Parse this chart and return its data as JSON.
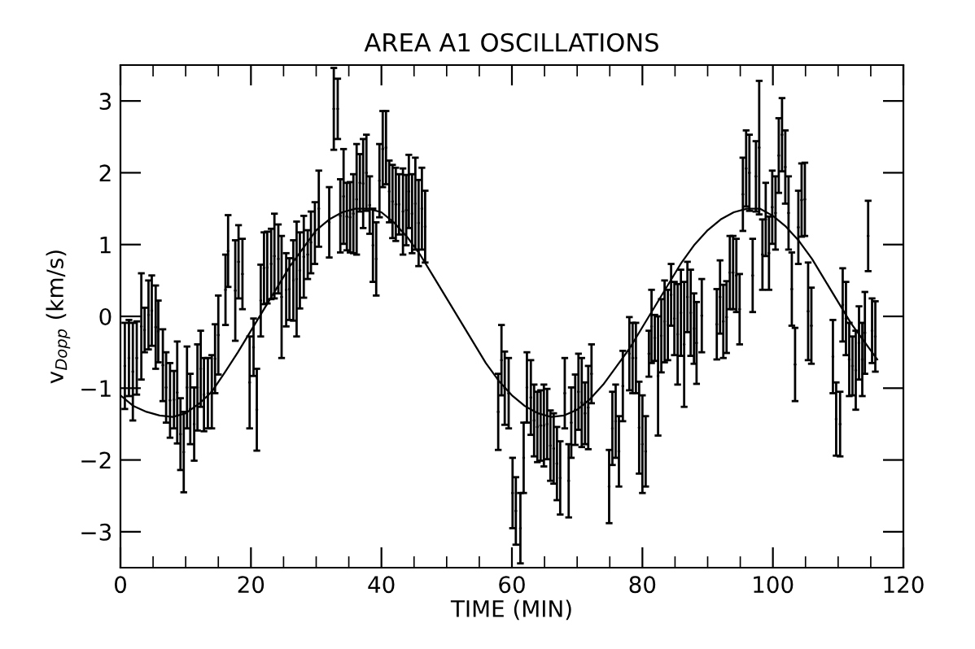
{
  "chart_data": {
    "type": "scatter",
    "title": "AREA A1 OSCILLATIONS",
    "xlabel": "TIME (MIN)",
    "ylabel": "v$_{Dopp}$ (km/s)",
    "xlim": [
      0,
      120
    ],
    "ylim": [
      -3.5,
      3.5
    ],
    "xticks": [
      0,
      {
        "value": 5,
        "label": null
      },
      {
        "value": 10,
        "label": null
      },
      {
        "value": 15,
        "label": null
      },
      20,
      {
        "value": 25,
        "label": null
      },
      {
        "value": 30,
        "label": null
      },
      {
        "value": 35,
        "label": null
      },
      40,
      {
        "value": 45,
        "label": null
      },
      {
        "value": 50,
        "label": null
      },
      {
        "value": 55,
        "label": null
      },
      60,
      {
        "value": 65,
        "label": null
      },
      {
        "value": 70,
        "label": null
      },
      {
        "value": 75,
        "label": null
      },
      80,
      {
        "value": 85,
        "label": null
      },
      {
        "value": 90,
        "label": null
      },
      {
        "value": 95,
        "label": null
      },
      100,
      {
        "value": 105,
        "label": null
      },
      {
        "value": 110,
        "label": null
      },
      {
        "value": 115,
        "label": null
      },
      120
    ],
    "yticks": [
      -3,
      -2,
      -1,
      0,
      1,
      2,
      3
    ],
    "grid": false,
    "legend": false,
    "marker": "none",
    "series": [
      {
        "color": "#000000",
        "x": [
          0.67,
          1.3,
          1.9,
          2.5,
          3.2,
          3.7,
          4.3,
          4.8,
          5.4,
          5.8,
          6.5,
          7.0,
          7.6,
          8.2,
          8.7,
          9.2,
          9.7,
          10.2,
          10.7,
          11.3,
          11.8,
          12.3,
          12.8,
          13.4,
          14.0,
          14.5,
          15.0,
          16.1,
          16.5,
          17.6,
          18.1,
          18.7,
          19.8,
          20.4,
          20.9,
          21.5,
          22.0,
          22.5,
          23.1,
          23.6,
          24.2,
          24.7,
          25.4,
          25.9,
          26.5,
          27.0,
          27.5,
          28.1,
          28.7,
          29.2,
          29.8,
          30.4,
          32.0,
          32.7,
          33.3,
          33.7,
          34.2,
          34.7,
          35.2,
          35.7,
          36.2,
          36.7,
          37.2,
          37.7,
          38.2,
          38.7,
          39.2,
          39.7,
          40.2,
          40.7,
          41.2,
          41.7,
          42.2,
          42.7,
          43.3,
          43.8,
          44.2,
          44.7,
          45.2,
          45.7,
          46.2,
          46.7,
          57.9,
          58.4,
          58.9,
          59.5,
          60.1,
          60.6,
          61.3,
          61.8,
          62.3,
          62.9,
          63.4,
          63.9,
          64.4,
          64.9,
          65.4,
          65.9,
          66.4,
          66.9,
          67.4,
          68.1,
          68.7,
          69.1,
          69.7,
          70.2,
          70.7,
          71.2,
          71.7,
          72.2,
          74.9,
          75.4,
          75.9,
          76.4,
          77.0,
          78.0,
          78.5,
          79.0,
          79.5,
          80.0,
          80.5,
          81.0,
          81.4,
          81.9,
          82.4,
          82.9,
          83.4,
          83.9,
          84.4,
          84.9,
          85.4,
          85.9,
          86.4,
          86.9,
          87.4,
          87.9,
          88.3,
          89.1,
          91.4,
          91.9,
          92.4,
          92.9,
          93.4,
          93.9,
          94.4,
          94.9,
          95.4,
          95.9,
          96.4,
          96.9,
          97.4,
          97.9,
          98.4,
          98.9,
          99.4,
          99.9,
          100.4,
          100.9,
          101.4,
          101.9,
          102.4,
          102.9,
          103.4,
          103.9,
          104.4,
          104.9,
          105.4,
          105.9,
          109.2,
          109.7,
          110.3,
          110.7,
          111.2,
          111.7,
          112.2,
          112.7,
          113.2,
          113.7,
          114.1,
          114.6,
          115.2,
          115.7
        ],
        "values": [
          -0.69,
          -0.58,
          -0.77,
          -0.58,
          -0.14,
          -0.19,
          0.02,
          0.08,
          -0.15,
          -0.21,
          -0.68,
          -0.99,
          -1.17,
          -1.16,
          -1.06,
          -1.64,
          -1.89,
          -0.99,
          -1.29,
          -1.5,
          -0.99,
          -0.73,
          -1.09,
          -1.07,
          -1.05,
          -0.59,
          -0.26,
          0.37,
          0.91,
          0.36,
          0.76,
          0.59,
          -0.92,
          -0.43,
          -1.3,
          0.22,
          0.67,
          0.68,
          0.73,
          0.84,
          0.8,
          0.27,
          0.37,
          0.38,
          0.5,
          0.52,
          0.64,
          0.83,
          0.86,
          1.03,
          1.16,
          1.5,
          1.31,
          2.89,
          2.89,
          1.4,
          1.67,
          1.39,
          1.38,
          1.43,
          1.63,
          1.86,
          1.85,
          2.0,
          1.55,
          0.99,
          0.8,
          1.89,
          2.33,
          2.35,
          1.74,
          1.6,
          1.56,
          1.56,
          1.46,
          1.48,
          1.74,
          1.43,
          1.57,
          1.3,
          1.5,
          1.25,
          -1.33,
          -0.61,
          -1.0,
          -1.07,
          -2.46,
          -2.71,
          -2.95,
          -1.97,
          -0.99,
          -1.13,
          -1.45,
          -1.54,
          -1.52,
          -1.52,
          -1.5,
          -1.8,
          -1.84,
          -2.05,
          -2.25,
          -1.07,
          -2.29,
          -1.48,
          -1.3,
          -1.05,
          -1.2,
          -1.35,
          -1.27,
          -0.8,
          -2.37,
          -1.56,
          -1.46,
          -1.88,
          -0.97,
          -0.52,
          -0.58,
          -0.58,
          -1.55,
          -1.78,
          -1.88,
          -0.52,
          -0.14,
          -0.3,
          -0.83,
          -0.27,
          -0.07,
          -0.12,
          0.3,
          -0.03,
          -0.25,
          0.05,
          -0.39,
          0.27,
          0.05,
          -0.17,
          -0.37,
          0.01,
          -0.11,
          0.27,
          -0.07,
          -0.01,
          0.61,
          0.61,
          0.57,
          0.1,
          1.7,
          2.06,
          2.0,
          0.57,
          1.95,
          2.35,
          0.86,
          1.35,
          0.88,
          1.52,
          1.44,
          2.24,
          2.53,
          2.08,
          1.44,
          0.38,
          -0.67,
          1.24,
          1.62,
          1.63,
          0.07,
          -0.13,
          -0.56,
          -1.43,
          -1.5,
          0.16,
          -0.03,
          -0.6,
          -0.69,
          -0.75,
          -0.37,
          -0.6,
          -0.23,
          1.12,
          -0.2,
          -0.28
        ],
        "errors": [
          0.6,
          0.53,
          0.68,
          0.51,
          0.74,
          0.31,
          0.48,
          0.49,
          0.58,
          0.43,
          0.5,
          0.49,
          0.52,
          0.4,
          0.71,
          0.5,
          0.56,
          0.57,
          0.49,
          0.51,
          0.6,
          0.53,
          0.51,
          0.49,
          0.51,
          0.48,
          0.55,
          0.49,
          0.5,
          0.7,
          0.51,
          0.49,
          0.64,
          0.4,
          0.57,
          0.5,
          0.5,
          0.5,
          0.49,
          0.59,
          0.48,
          0.85,
          0.51,
          0.43,
          0.56,
          0.8,
          0.53,
          0.57,
          0.34,
          0.43,
          0.43,
          0.53,
          0.49,
          0.57,
          0.42,
          0.51,
          0.66,
          0.47,
          0.49,
          0.55,
          0.77,
          0.4,
          0.62,
          0.53,
          0.4,
          0.51,
          0.51,
          0.51,
          0.53,
          0.51,
          0.43,
          0.51,
          0.51,
          0.42,
          0.6,
          0.49,
          0.51,
          0.55,
          0.64,
          0.6,
          0.57,
          0.5,
          0.53,
          0.49,
          0.51,
          0.49,
          0.49,
          0.47,
          0.49,
          0.49,
          0.49,
          0.52,
          0.5,
          0.49,
          0.49,
          0.57,
          0.49,
          0.49,
          0.49,
          0.51,
          0.51,
          0.49,
          0.51,
          0.49,
          0.49,
          0.53,
          0.62,
          0.43,
          0.58,
          0.41,
          0.51,
          0.51,
          0.51,
          0.49,
          0.49,
          0.51,
          0.49,
          0.49,
          0.64,
          0.68,
          0.49,
          0.32,
          0.51,
          0.32,
          0.83,
          0.51,
          0.57,
          0.49,
          0.43,
          0.51,
          0.7,
          0.6,
          0.87,
          0.49,
          0.6,
          0.49,
          0.57,
          0.51,
          0.49,
          0.51,
          0.51,
          0.5,
          0.51,
          0.51,
          0.51,
          0.49,
          0.51,
          0.53,
          0.53,
          0.51,
          0.49,
          0.93,
          0.49,
          0.51,
          0.51,
          0.51,
          0.51,
          0.52,
          0.51,
          0.51,
          0.51,
          0.51,
          0.51,
          0.51,
          0.51,
          0.51,
          0.68,
          0.53,
          0.51,
          0.51,
          0.45,
          0.51,
          0.51,
          0.51,
          0.41,
          0.55,
          0.51,
          0.51,
          0.57,
          0.49,
          0.45,
          0.49
        ]
      },
      {
        "type": "line",
        "color": "#000000",
        "x": [
          0,
          2,
          4,
          6,
          8,
          10,
          12,
          14,
          16,
          18,
          20,
          22,
          24,
          26,
          28,
          30,
          32,
          34,
          36,
          38,
          40,
          42,
          44,
          46,
          48,
          50,
          52,
          54,
          56,
          58,
          60,
          62,
          64,
          66,
          68,
          70,
          72,
          74,
          76,
          78,
          80,
          82,
          84,
          86,
          88,
          90,
          92,
          94,
          96,
          98,
          100,
          102,
          104,
          106,
          108,
          110,
          112,
          114,
          116
        ],
        "values": [
          -1.1,
          -1.25,
          -1.33,
          -1.38,
          -1.4,
          -1.35,
          -1.22,
          -1.05,
          -0.78,
          -0.5,
          -0.2,
          0.1,
          0.4,
          0.7,
          0.95,
          1.2,
          1.35,
          1.45,
          1.5,
          1.5,
          1.45,
          1.3,
          1.1,
          0.85,
          0.55,
          0.25,
          -0.05,
          -0.35,
          -0.65,
          -0.9,
          -1.1,
          -1.25,
          -1.35,
          -1.4,
          -1.38,
          -1.3,
          -1.15,
          -0.95,
          -0.7,
          -0.45,
          -0.15,
          0.15,
          0.45,
          0.75,
          1.0,
          1.2,
          1.35,
          1.45,
          1.5,
          1.5,
          1.4,
          1.25,
          1.05,
          0.8,
          0.5,
          0.2,
          -0.1,
          -0.35,
          -0.6
        ]
      }
    ]
  }
}
